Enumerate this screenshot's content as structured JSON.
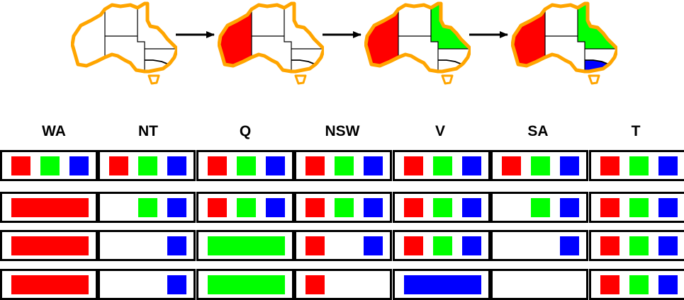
{
  "colors": {
    "outline": "#FFA500",
    "border": "#000000",
    "red": "#FF0000",
    "green": "#00FF00",
    "blue": "#0000FF",
    "background": "#FFFFFF"
  },
  "maps": [
    {
      "assigned": {}
    },
    {
      "assigned": {
        "WA": "red"
      }
    },
    {
      "assigned": {
        "WA": "red",
        "Q": "green"
      }
    },
    {
      "assigned": {
        "WA": "red",
        "Q": "green",
        "V": "blue"
      }
    }
  ],
  "columns": [
    "WA",
    "NT",
    "Q",
    "NSW",
    "V",
    "SA",
    "T"
  ],
  "rows": [
    {
      "WA": [
        "red",
        "green",
        "blue"
      ],
      "NT": [
        "red",
        "green",
        "blue"
      ],
      "Q": [
        "red",
        "green",
        "blue"
      ],
      "NSW": [
        "red",
        "green",
        "blue"
      ],
      "V": [
        "red",
        "green",
        "blue"
      ],
      "SA": [
        "red",
        "green",
        "blue"
      ],
      "T": [
        "red",
        "green",
        "blue"
      ]
    },
    {
      "WA": [
        "red"
      ],
      "NT": [
        "green",
        "blue"
      ],
      "Q": [
        "red",
        "green",
        "blue"
      ],
      "NSW": [
        "red",
        "green",
        "blue"
      ],
      "V": [
        "red",
        "green",
        "blue"
      ],
      "SA": [
        "green",
        "blue"
      ],
      "T": [
        "red",
        "green",
        "blue"
      ]
    },
    {
      "WA": [
        "red"
      ],
      "NT": [
        "blue"
      ],
      "Q": [
        "green"
      ],
      "NSW": [
        "red",
        "blue"
      ],
      "V": [
        "red",
        "green",
        "blue"
      ],
      "SA": [
        "blue"
      ],
      "T": [
        "red",
        "green",
        "blue"
      ]
    },
    {
      "WA": [
        "red"
      ],
      "NT": [
        "blue"
      ],
      "Q": [
        "green"
      ],
      "NSW": [
        "red"
      ],
      "V": [
        "blue"
      ],
      "SA": [],
      "T": [
        "red",
        "green",
        "blue"
      ]
    }
  ]
}
